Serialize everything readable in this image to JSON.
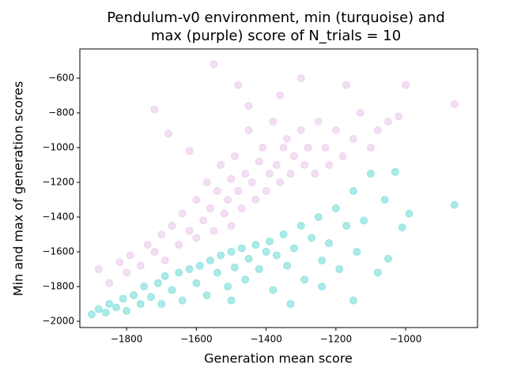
{
  "chart_data": {
    "type": "scatter",
    "title": [
      "Pendulum-v0 environment, min (turquoise) and",
      "max (purple) score of N_trials = 10"
    ],
    "x_label": "Generation mean score",
    "y_label": "Min and max of generation scores",
    "xlim": [
      -1934,
      -794
    ],
    "ylim": [
      -2036,
      -432
    ],
    "xticks": [
      {
        "value": -1800,
        "label": "−1800"
      },
      {
        "value": -1600,
        "label": "−1600"
      },
      {
        "value": -1400,
        "label": "−1400"
      },
      {
        "value": -1200,
        "label": "−1200"
      },
      {
        "value": -1000,
        "label": "−1000"
      }
    ],
    "yticks": [
      {
        "value": -2000,
        "label": "−2000"
      },
      {
        "value": -1800,
        "label": "−1800"
      },
      {
        "value": -1600,
        "label": "−1600"
      },
      {
        "value": -1400,
        "label": "−1400"
      },
      {
        "value": -1200,
        "label": "−1200"
      },
      {
        "value": -1000,
        "label": "−1000"
      },
      {
        "value": -800,
        "label": "−800"
      },
      {
        "value": -600,
        "label": "−600"
      }
    ],
    "series": [
      {
        "color": "#dda0dd",
        "opacity": 0.35,
        "x": [
          -1880,
          -1850,
          -1820,
          -1800,
          -1790,
          -1760,
          -1740,
          -1720,
          -1700,
          -1690,
          -1670,
          -1650,
          -1640,
          -1620,
          -1600,
          -1600,
          -1580,
          -1570,
          -1560,
          -1550,
          -1540,
          -1530,
          -1520,
          -1510,
          -1500,
          -1500,
          -1490,
          -1480,
          -1470,
          -1460,
          -1450,
          -1440,
          -1430,
          -1420,
          -1410,
          -1400,
          -1390,
          -1380,
          -1370,
          -1360,
          -1350,
          -1340,
          -1330,
          -1320,
          -1300,
          -1290,
          -1280,
          -1260,
          -1250,
          -1230,
          -1220,
          -1200,
          -1180,
          -1150,
          -1130,
          -1100,
          -1080,
          -1050,
          -1020,
          -1000,
          -1550,
          -1480,
          -1300,
          -1720,
          -1680,
          -860,
          -1450,
          -1360,
          -1170,
          -1620
        ],
        "values": [
          -1700,
          -1780,
          -1660,
          -1720,
          -1620,
          -1680,
          -1560,
          -1600,
          -1500,
          -1650,
          -1450,
          -1560,
          -1380,
          -1480,
          -1300,
          -1520,
          -1420,
          -1200,
          -1350,
          -1480,
          -1250,
          -1100,
          -1380,
          -1300,
          -1180,
          -1450,
          -1050,
          -1250,
          -1350,
          -1150,
          -900,
          -1200,
          -1300,
          -1080,
          -1000,
          -1250,
          -1150,
          -850,
          -1100,
          -1200,
          -1000,
          -950,
          -1150,
          -1050,
          -900,
          -1100,
          -1000,
          -1150,
          -850,
          -1000,
          -1100,
          -900,
          -1050,
          -950,
          -800,
          -1000,
          -900,
          -850,
          -820,
          -640,
          -520,
          -640,
          -600,
          -780,
          -920,
          -750,
          -760,
          -700,
          -640,
          -1020
        ]
      },
      {
        "color": "#48d1cc",
        "opacity": 0.45,
        "x": [
          -1900,
          -1880,
          -1860,
          -1850,
          -1830,
          -1810,
          -1800,
          -1780,
          -1760,
          -1750,
          -1730,
          -1710,
          -1700,
          -1690,
          -1670,
          -1650,
          -1640,
          -1620,
          -1600,
          -1590,
          -1570,
          -1560,
          -1540,
          -1530,
          -1510,
          -1500,
          -1490,
          -1470,
          -1460,
          -1450,
          -1430,
          -1420,
          -1400,
          -1390,
          -1380,
          -1370,
          -1350,
          -1340,
          -1320,
          -1300,
          -1290,
          -1270,
          -1250,
          -1240,
          -1220,
          -1200,
          -1190,
          -1170,
          -1150,
          -1140,
          -1120,
          -1100,
          -1080,
          -1060,
          -1050,
          -1030,
          -1010,
          -990,
          -860,
          -1150,
          -1330,
          -1500,
          -1240
        ],
        "values": [
          -1960,
          -1930,
          -1950,
          -1900,
          -1920,
          -1870,
          -1940,
          -1850,
          -1900,
          -1800,
          -1860,
          -1780,
          -1900,
          -1740,
          -1820,
          -1720,
          -1880,
          -1700,
          -1780,
          -1680,
          -1850,
          -1650,
          -1720,
          -1620,
          -1800,
          -1600,
          -1690,
          -1580,
          -1760,
          -1640,
          -1560,
          -1700,
          -1600,
          -1540,
          -1820,
          -1620,
          -1500,
          -1680,
          -1580,
          -1450,
          -1760,
          -1520,
          -1400,
          -1650,
          -1550,
          -1350,
          -1700,
          -1450,
          -1250,
          -1600,
          -1420,
          -1150,
          -1720,
          -1300,
          -1640,
          -1140,
          -1460,
          -1380,
          -1330,
          -1880,
          -1900,
          -1880,
          -1800
        ]
      }
    ]
  }
}
